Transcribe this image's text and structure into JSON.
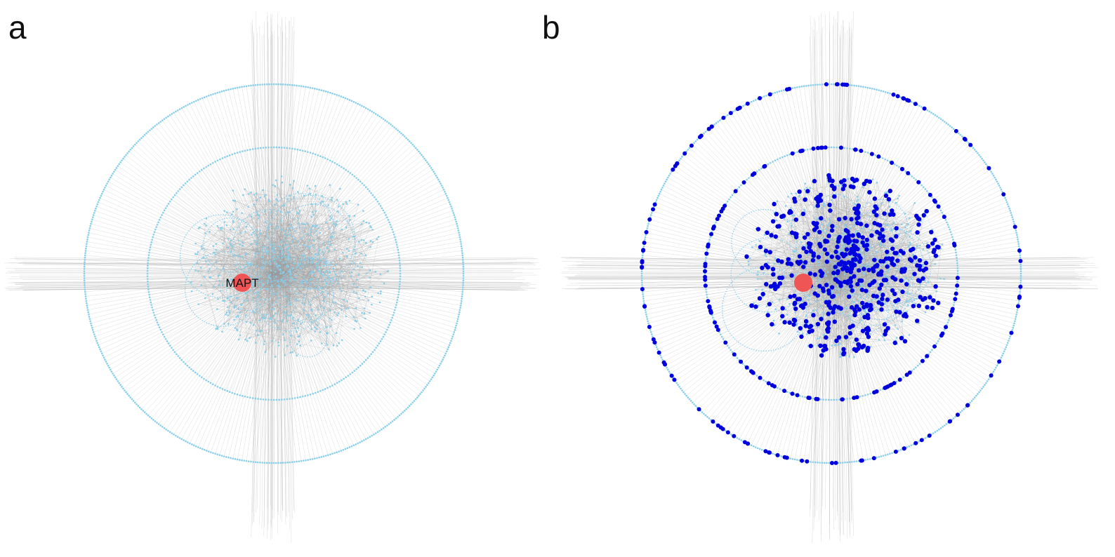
{
  "panels": [
    {
      "letter": "a",
      "hub_label": "MAPT",
      "hub_color": "#f05555",
      "node_color": "#87ceeb",
      "highlight_color": "",
      "edge_color": "#9a9a9a"
    },
    {
      "letter": "b",
      "hub_label": "",
      "hub_color": "#f05555",
      "node_color": "#87ceeb",
      "highlight_color": "#0000dd",
      "edge_color": "#9a9a9a"
    }
  ]
}
